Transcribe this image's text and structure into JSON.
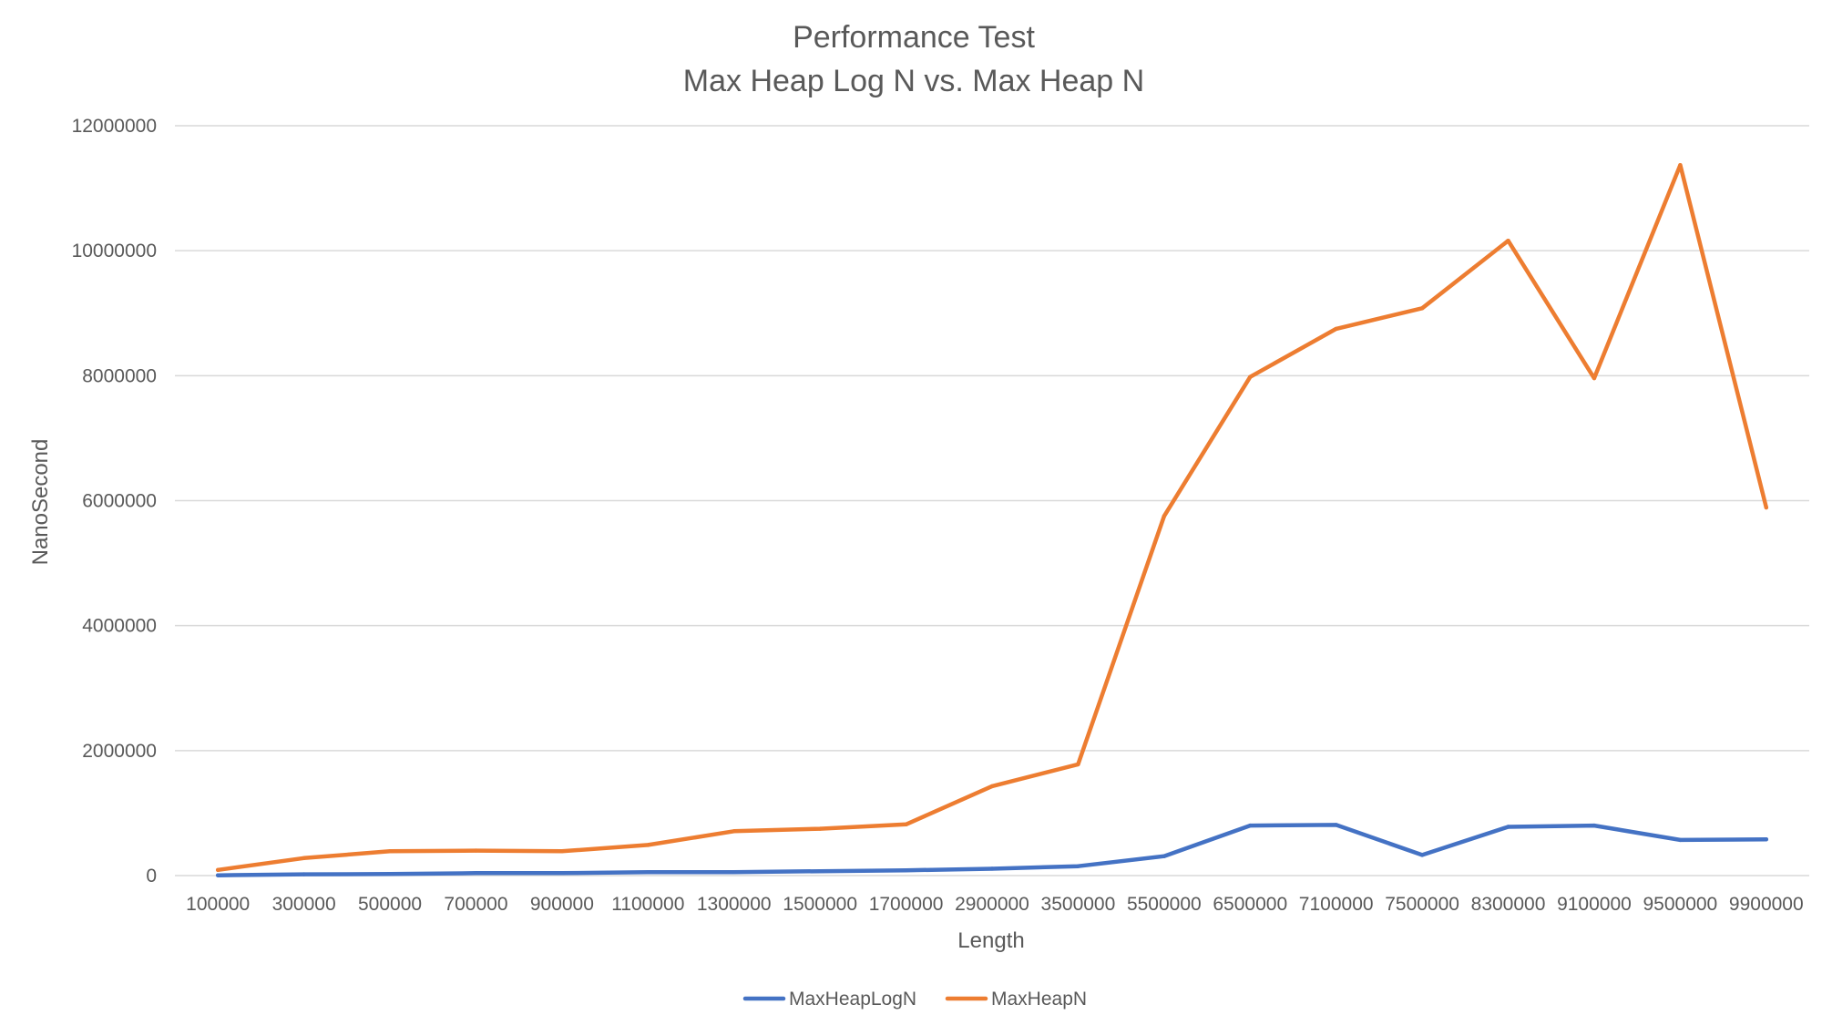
{
  "chart_data": {
    "type": "line",
    "title": "Performance Test",
    "subtitle": "Max Heap Log N vs. Max Heap N",
    "xlabel": "Length",
    "ylabel": "NanoSecond",
    "ylim": [
      0,
      12000000
    ],
    "yticks": [
      "0",
      "2000000",
      "4000000",
      "6000000",
      "8000000",
      "10000000",
      "12000000"
    ],
    "grid": true,
    "legend_position": "bottom",
    "categories": [
      "100000",
      "300000",
      "500000",
      "700000",
      "900000",
      "1100000",
      "1300000",
      "1500000",
      "1700000",
      "2900000",
      "3500000",
      "5500000",
      "6500000",
      "7100000",
      "7500000",
      "8300000",
      "9100000",
      "9500000",
      "9900000"
    ],
    "series": [
      {
        "name": "MaxHeapLogN",
        "color": "#4472C4",
        "values": [
          5000,
          20000,
          25000,
          40000,
          40000,
          55000,
          55000,
          70000,
          85000,
          110000,
          150000,
          310000,
          800000,
          810000,
          330000,
          780000,
          800000,
          570000,
          580000
        ]
      },
      {
        "name": "MaxHeapN",
        "color": "#ED7D31",
        "values": [
          90000,
          280000,
          390000,
          400000,
          390000,
          490000,
          710000,
          750000,
          820000,
          1430000,
          1780000,
          5750000,
          7980000,
          8750000,
          9080000,
          10160000,
          7960000,
          11370000,
          5890000
        ]
      }
    ]
  }
}
